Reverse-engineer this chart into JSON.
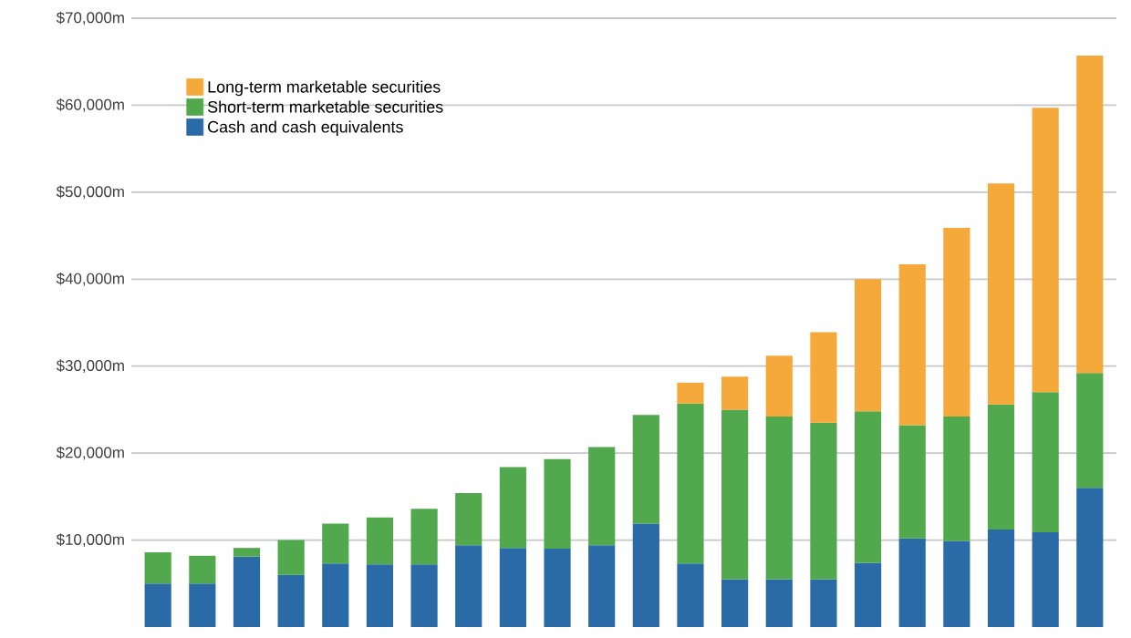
{
  "chart_data": {
    "type": "bar",
    "stacked": true,
    "categories": [
      null,
      null,
      null,
      null,
      null,
      null,
      null,
      null,
      null,
      null,
      null,
      null,
      null,
      null,
      null,
      null,
      null,
      null,
      null,
      null,
      null,
      null
    ],
    "series": [
      {
        "name": "Cash and cash equivalents",
        "color": "#2a6aa6",
        "values": [
          5000,
          5000,
          8100,
          6000,
          7300,
          7200,
          7200,
          9400,
          9100,
          9000,
          9400,
          11900,
          7300,
          5500,
          5500,
          5500,
          7400,
          10200,
          9900,
          11200,
          10900,
          16000
        ]
      },
      {
        "name": "Short-term marketable securities",
        "color": "#52a84c",
        "values": [
          3600,
          3200,
          1000,
          4000,
          4600,
          5400,
          6400,
          6000,
          9300,
          10300,
          11300,
          12500,
          18400,
          19500,
          18700,
          18000,
          17400,
          13000,
          14300,
          14400,
          16100,
          13200
        ]
      },
      {
        "name": "Long-term marketable securities",
        "color": "#f5a93a",
        "values": [
          null,
          null,
          null,
          null,
          null,
          null,
          null,
          null,
          null,
          null,
          null,
          null,
          2400,
          3800,
          7000,
          10400,
          15200,
          18500,
          21700,
          25400,
          32700,
          36500
        ]
      }
    ],
    "ylim": [
      0,
      70000
    ],
    "yticks": [
      {
        "value": 10000,
        "label": "$10,000m"
      },
      {
        "value": 20000,
        "label": "$20,000m"
      },
      {
        "value": 30000,
        "label": "$30,000m"
      },
      {
        "value": 40000,
        "label": "$40,000m"
      },
      {
        "value": 50000,
        "label": "$50,000m"
      },
      {
        "value": 60000,
        "label": "$60,000m"
      },
      {
        "value": 70000,
        "label": "$70,000m"
      }
    ],
    "grid": "y",
    "legend": "top left"
  }
}
